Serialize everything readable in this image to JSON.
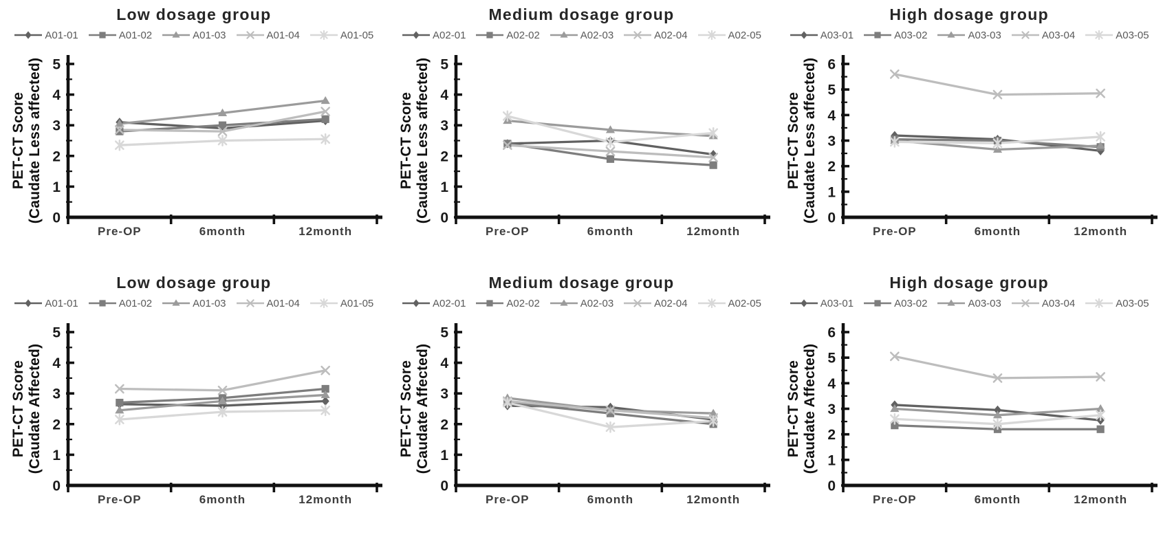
{
  "figure": {
    "background": "#ffffff",
    "axis_color": "#111111",
    "title_color": "#262626",
    "legend_text_color": "#595959"
  },
  "chart_data": [
    {
      "type": "line",
      "title": "Low dosage group",
      "xlabel": "",
      "ylabel": [
        "PET-CT Score",
        "(Caudate Less affected)"
      ],
      "categories": [
        "Pre-OP",
        "6month",
        "12month"
      ],
      "ylim": [
        0,
        5
      ],
      "ytick_interval": 1,
      "minor_tick_interval": 0.5,
      "grid": false,
      "legend_position": "top",
      "series": [
        {
          "name": "A01-01",
          "marker": "diamond",
          "color": "#616161",
          "values": [
            3.1,
            2.9,
            3.15
          ]
        },
        {
          "name": "A01-02",
          "marker": "square",
          "color": "#7d7d7d",
          "values": [
            2.8,
            3.0,
            3.2
          ]
        },
        {
          "name": "A01-03",
          "marker": "triangle",
          "color": "#9b9b9b",
          "values": [
            3.05,
            3.4,
            3.8
          ]
        },
        {
          "name": "A01-04",
          "marker": "x",
          "color": "#bdbdbd",
          "values": [
            2.85,
            2.8,
            3.45
          ]
        },
        {
          "name": "A01-05",
          "marker": "asterisk",
          "color": "#d8d8d8",
          "values": [
            2.35,
            2.5,
            2.55
          ]
        }
      ]
    },
    {
      "type": "line",
      "title": "Medium dosage group",
      "xlabel": "",
      "ylabel": [
        "PET-CT Score",
        "(Caudate Less affected)"
      ],
      "categories": [
        "Pre-OP",
        "6month",
        "12month"
      ],
      "ylim": [
        0,
        5
      ],
      "ytick_interval": 1,
      "minor_tick_interval": 0.5,
      "grid": false,
      "legend_position": "top",
      "series": [
        {
          "name": "A02-01",
          "marker": "diamond",
          "color": "#616161",
          "values": [
            2.4,
            2.5,
            2.05
          ]
        },
        {
          "name": "A02-02",
          "marker": "square",
          "color": "#7d7d7d",
          "values": [
            2.4,
            1.9,
            1.7
          ]
        },
        {
          "name": "A02-03",
          "marker": "triangle",
          "color": "#9b9b9b",
          "values": [
            3.15,
            2.85,
            2.65
          ]
        },
        {
          "name": "A02-04",
          "marker": "x",
          "color": "#bdbdbd",
          "values": [
            2.35,
            2.15,
            1.95
          ]
        },
        {
          "name": "A02-05",
          "marker": "asterisk",
          "color": "#d8d8d8",
          "values": [
            3.3,
            2.45,
            2.75
          ]
        }
      ]
    },
    {
      "type": "line",
      "title": "High dosage group",
      "xlabel": "",
      "ylabel": [
        "PET-CT Score",
        "(Caudate Less affected)"
      ],
      "categories": [
        "Pre-OP",
        "6month",
        "12month"
      ],
      "ylim": [
        0,
        6
      ],
      "ytick_interval": 1,
      "minor_tick_interval": 0.5,
      "grid": false,
      "legend_position": "top",
      "series": [
        {
          "name": "A03-01",
          "marker": "diamond",
          "color": "#616161",
          "values": [
            3.2,
            3.05,
            2.6
          ]
        },
        {
          "name": "A03-02",
          "marker": "square",
          "color": "#7d7d7d",
          "values": [
            3.05,
            3.0,
            2.75
          ]
        },
        {
          "name": "A03-03",
          "marker": "triangle",
          "color": "#9b9b9b",
          "values": [
            3.0,
            2.65,
            2.8
          ]
        },
        {
          "name": "A03-04",
          "marker": "x",
          "color": "#bdbdbd",
          "values": [
            5.6,
            4.8,
            4.85
          ]
        },
        {
          "name": "A03-05",
          "marker": "asterisk",
          "color": "#d8d8d8",
          "values": [
            2.95,
            2.9,
            3.15
          ]
        }
      ]
    },
    {
      "type": "line",
      "title": "Low dosage group",
      "xlabel": "",
      "ylabel": [
        "PET-CT Score",
        "(Caudate Affected)"
      ],
      "categories": [
        "Pre-OP",
        "6month",
        "12month"
      ],
      "ylim": [
        0,
        5
      ],
      "ytick_interval": 1,
      "minor_tick_interval": 0.5,
      "grid": false,
      "legend_position": "top",
      "series": [
        {
          "name": "A01-01",
          "marker": "diamond",
          "color": "#616161",
          "values": [
            2.65,
            2.6,
            2.75
          ]
        },
        {
          "name": "A01-02",
          "marker": "square",
          "color": "#7d7d7d",
          "values": [
            2.7,
            2.85,
            3.15
          ]
        },
        {
          "name": "A01-03",
          "marker": "triangle",
          "color": "#9b9b9b",
          "values": [
            2.45,
            2.75,
            2.95
          ]
        },
        {
          "name": "A01-04",
          "marker": "x",
          "color": "#bdbdbd",
          "values": [
            3.15,
            3.1,
            3.75
          ]
        },
        {
          "name": "A01-05",
          "marker": "asterisk",
          "color": "#d8d8d8",
          "values": [
            2.15,
            2.4,
            2.45
          ]
        }
      ]
    },
    {
      "type": "line",
      "title": "Medium dosage group",
      "xlabel": "",
      "ylabel": [
        "PET-CT Score",
        "(Caudate Affected)"
      ],
      "categories": [
        "Pre-OP",
        "6month",
        "12month"
      ],
      "ylim": [
        0,
        5
      ],
      "ytick_interval": 1,
      "minor_tick_interval": 0.5,
      "grid": false,
      "legend_position": "top",
      "series": [
        {
          "name": "A02-01",
          "marker": "diamond",
          "color": "#616161",
          "values": [
            2.6,
            2.55,
            2.15
          ]
        },
        {
          "name": "A02-02",
          "marker": "square",
          "color": "#7d7d7d",
          "values": [
            2.7,
            2.35,
            2.0
          ]
        },
        {
          "name": "A02-03",
          "marker": "triangle",
          "color": "#9b9b9b",
          "values": [
            2.85,
            2.45,
            2.35
          ]
        },
        {
          "name": "A02-04",
          "marker": "x",
          "color": "#bdbdbd",
          "values": [
            2.75,
            2.45,
            2.2
          ]
        },
        {
          "name": "A02-05",
          "marker": "asterisk",
          "color": "#d8d8d8",
          "values": [
            2.7,
            1.9,
            2.1
          ]
        }
      ]
    },
    {
      "type": "line",
      "title": "High dosage group",
      "xlabel": "",
      "ylabel": [
        "PET-CT Score",
        "(Caudate Affected)"
      ],
      "categories": [
        "Pre-OP",
        "6month",
        "12month"
      ],
      "ylim": [
        0,
        6
      ],
      "ytick_interval": 1,
      "minor_tick_interval": 0.5,
      "grid": false,
      "legend_position": "top",
      "series": [
        {
          "name": "A03-01",
          "marker": "diamond",
          "color": "#616161",
          "values": [
            3.15,
            2.95,
            2.55
          ]
        },
        {
          "name": "A03-02",
          "marker": "square",
          "color": "#7d7d7d",
          "values": [
            2.35,
            2.2,
            2.2
          ]
        },
        {
          "name": "A03-03",
          "marker": "triangle",
          "color": "#9b9b9b",
          "values": [
            3.0,
            2.75,
            3.0
          ]
        },
        {
          "name": "A03-04",
          "marker": "x",
          "color": "#bdbdbd",
          "values": [
            5.05,
            4.2,
            4.25
          ]
        },
        {
          "name": "A03-05",
          "marker": "asterisk",
          "color": "#d8d8d8",
          "values": [
            2.6,
            2.4,
            2.75
          ]
        }
      ]
    }
  ]
}
